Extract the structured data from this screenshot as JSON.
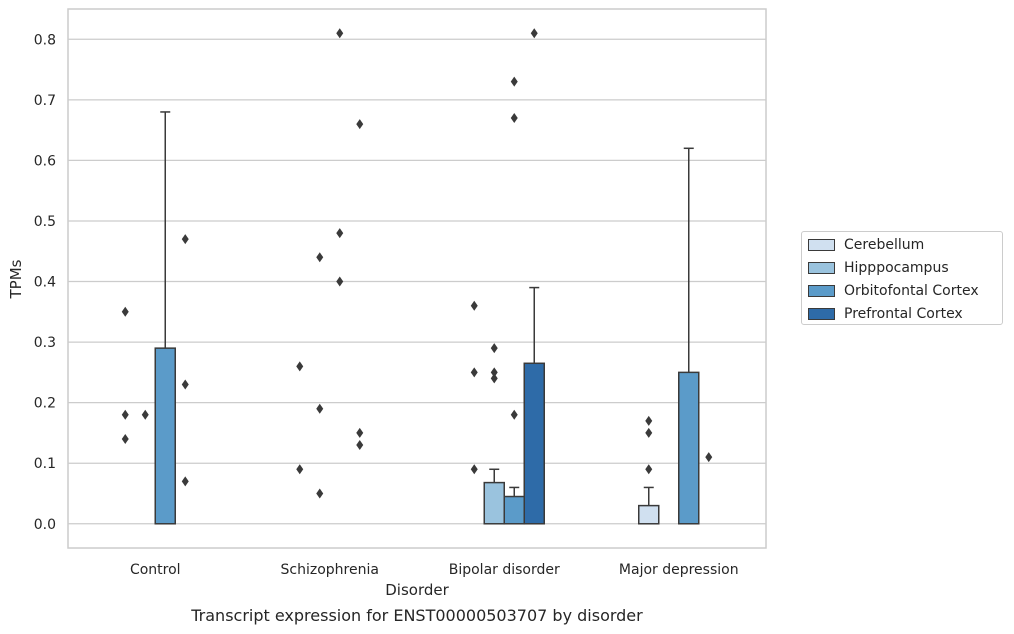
{
  "chart_data": {
    "type": "bar",
    "caption": "Transcript expression for ENST00000503707 by disorder",
    "xlabel": "Disorder",
    "ylabel": "TPMs",
    "ylim": [
      -0.04,
      0.85
    ],
    "yticks": [
      "0.0",
      "0.1",
      "0.2",
      "0.3",
      "0.4",
      "0.5",
      "0.6",
      "0.7",
      "0.8"
    ],
    "grid": true,
    "legend_position": "right",
    "categories": [
      "Control",
      "Schizophrenia",
      "Bipolar disorder",
      "Major depression"
    ],
    "series": [
      {
        "name": "Cerebellum",
        "color": "#d0e0f0",
        "values": [
          0,
          0,
          0,
          0.03
        ],
        "error_top": [
          null,
          null,
          null,
          0.06
        ],
        "outliers": [
          [
            0.14,
            0.18,
            0.35
          ],
          [
            0.09,
            0.26
          ],
          [
            0.09,
            0.25,
            0.36
          ],
          [
            0.09,
            0.15,
            0.17
          ]
        ]
      },
      {
        "name": "Hipppocampus",
        "color": "#9ac3de",
        "values": [
          0,
          0,
          0.068,
          0
        ],
        "error_top": [
          null,
          null,
          0.09,
          null
        ],
        "outliers": [
          [
            0.18
          ],
          [
            0.05,
            0.19,
            0.44
          ],
          [
            0.24,
            0.25,
            0.29
          ],
          []
        ]
      },
      {
        "name": "Orbitofontal Cortex",
        "color": "#5b9bc9",
        "values": [
          0.29,
          0,
          0.045,
          0.25
        ],
        "error_top": [
          0.68,
          null,
          0.06,
          0.62
        ],
        "outliers": [
          [],
          [
            0.4,
            0.48,
            0.81
          ],
          [
            0.18,
            0.67,
            0.73
          ],
          []
        ]
      },
      {
        "name": "Prefrontal Cortex",
        "color": "#2e6ba8",
        "values": [
          0,
          0,
          0.265,
          0
        ],
        "error_top": [
          null,
          null,
          0.39,
          null
        ],
        "outliers": [
          [
            0.07,
            0.23,
            0.47
          ],
          [
            0.13,
            0.15,
            0.66
          ],
          [
            0.81
          ],
          [
            0.11
          ]
        ]
      }
    ]
  }
}
